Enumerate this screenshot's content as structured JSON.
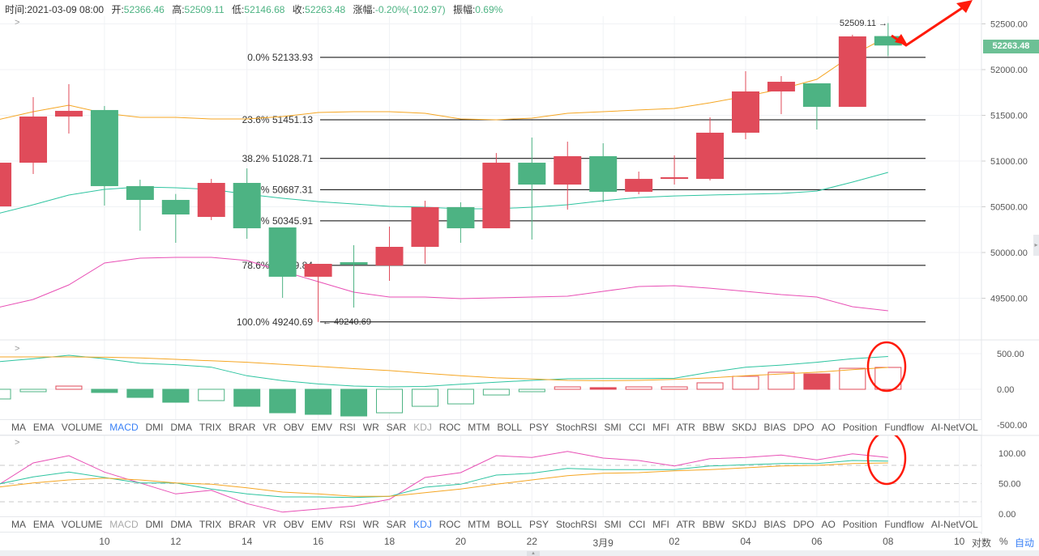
{
  "header": {
    "time_label": "时间:",
    "time": "2021-03-09 08:00",
    "open_label": "开:",
    "open": "52366.46",
    "high_label": "高:",
    "high": "52509.11",
    "low_label": "低:",
    "low": "52146.68",
    "close_label": "收:",
    "close": "52263.48",
    "change_label": "涨幅:",
    "change": "-0.20%(-102.97)",
    "amplitude_label": "振幅:",
    "amplitude": "0.69%"
  },
  "colors": {
    "up": "#e04b5a",
    "down": "#4db383",
    "ma1": "#f5a623",
    "ma2": "#2ec4a0",
    "ma3": "#e84fb5",
    "fib": "#000000",
    "annotation": "#ff1a0a",
    "active_tab": "#3b82f6"
  },
  "price_axis": {
    "ticks": [
      "52500.00",
      "52000.00",
      "51500.00",
      "51000.00",
      "50500.00",
      "50000.00",
      "49500.00"
    ],
    "tick_values": [
      52500,
      52000,
      51500,
      51000,
      50500,
      50000,
      49500
    ],
    "current_price": "52263.48"
  },
  "macd_axis": {
    "ticks": [
      "500.00",
      "0.00",
      "-500.00"
    ],
    "tick_values": [
      500,
      0,
      -500
    ]
  },
  "kdj_axis": {
    "ticks": [
      "100.00",
      "50.00",
      "0.00"
    ],
    "tick_values": [
      100,
      50,
      0
    ],
    "dashed_levels": [
      80,
      50,
      20
    ]
  },
  "x_axis": {
    "labels": [
      "10",
      "12",
      "14",
      "16",
      "18",
      "20",
      "22",
      "3月9",
      "02",
      "04",
      "06",
      "08",
      "10"
    ],
    "label_candle_index": [
      2,
      4,
      6,
      8,
      10,
      12,
      14,
      16,
      18,
      20,
      22,
      24,
      26
    ]
  },
  "axis_controls": {
    "log": "对数",
    "percent": "%",
    "auto": "自动"
  },
  "fibonacci": [
    {
      "label": "0.0% 52133.93",
      "value": 52133.93
    },
    {
      "label": "23.6% 51451.13",
      "value": 51451.13
    },
    {
      "label": "38.2% 51028.71",
      "value": 51028.71
    },
    {
      "label": "50.0% 50687.31",
      "value": 50687.31
    },
    {
      "label": "61.8% 50345.91",
      "value": 50345.91
    },
    {
      "label": "78.6% 49859.84",
      "value": 49859.84
    },
    {
      "label": "100.0% 49240.69",
      "value": 49240.69
    }
  ],
  "markers": {
    "high": "52509.11 →",
    "low": "← 49240.69"
  },
  "candles": [
    {
      "o": 50504,
      "h": 51050,
      "l": 50400,
      "c": 50982
    },
    {
      "o": 50982,
      "h": 51699,
      "l": 50858,
      "c": 51487
    },
    {
      "o": 51487,
      "h": 51841,
      "l": 51301,
      "c": 51549
    },
    {
      "o": 51558,
      "h": 51602,
      "l": 50513,
      "c": 50726
    },
    {
      "o": 50726,
      "h": 50796,
      "l": 50239,
      "c": 50575
    },
    {
      "o": 50575,
      "h": 50640,
      "l": 50106,
      "c": 50416
    },
    {
      "o": 50389,
      "h": 50805,
      "l": 50354,
      "c": 50761
    },
    {
      "o": 50761,
      "h": 50920,
      "l": 50150,
      "c": 50265
    },
    {
      "o": 50274,
      "h": 50274,
      "l": 49504,
      "c": 49735
    },
    {
      "o": 49735,
      "h": 49876,
      "l": 49240.69,
      "c": 49876
    },
    {
      "o": 49894,
      "h": 50080,
      "l": 49398,
      "c": 49867
    },
    {
      "o": 49858,
      "h": 50283,
      "l": 49690,
      "c": 50062
    },
    {
      "o": 50062,
      "h": 50566,
      "l": 49876,
      "c": 50496
    },
    {
      "o": 50496,
      "h": 50549,
      "l": 50106,
      "c": 50265
    },
    {
      "o": 50265,
      "h": 51088,
      "l": 50265,
      "c": 50982
    },
    {
      "o": 50982,
      "h": 51257,
      "l": 50142,
      "c": 50743
    },
    {
      "o": 50743,
      "h": 51212,
      "l": 50469,
      "c": 51053
    },
    {
      "o": 51053,
      "h": 51195,
      "l": 50549,
      "c": 50664
    },
    {
      "o": 50664,
      "h": 50885,
      "l": 50637,
      "c": 50805
    },
    {
      "o": 50805,
      "h": 51062,
      "l": 50743,
      "c": 50823
    },
    {
      "o": 50805,
      "h": 51478,
      "l": 50788,
      "c": 51310
    },
    {
      "o": 51310,
      "h": 51982,
      "l": 51239,
      "c": 51761
    },
    {
      "o": 51761,
      "h": 51929,
      "l": 51513,
      "c": 51867
    },
    {
      "o": 51850,
      "h": 51850,
      "l": 51345,
      "c": 51593
    },
    {
      "o": 51593,
      "h": 52381,
      "l": 51593,
      "c": 52363
    },
    {
      "o": 52366.46,
      "h": 52509.11,
      "l": 52146.68,
      "c": 52263.48
    }
  ],
  "ma_lines": [
    [
      51451,
      51540,
      51611,
      51522,
      51478,
      51478,
      51460,
      51460,
      51487,
      51531,
      51540,
      51540,
      51522,
      51460,
      51451,
      51469,
      51522,
      51540,
      51558,
      51575,
      51637,
      51708,
      51788,
      51894,
      52159,
      52363
    ],
    [
      50425,
      50522,
      50628,
      50690,
      50717,
      50708,
      50690,
      50637,
      50593,
      50557,
      50531,
      50504,
      50496,
      50478,
      50478,
      50496,
      50522,
      50566,
      50602,
      50619,
      50628,
      50637,
      50646,
      50672,
      50770,
      50876
    ],
    [
      49398,
      49487,
      49646,
      49885,
      49938,
      49947,
      49947,
      49912,
      49796,
      49681,
      49566,
      49513,
      49513,
      49496,
      49504,
      49513,
      49522,
      49575,
      49628,
      49637,
      49610,
      49575,
      49540,
      49513,
      49407,
      49363
    ]
  ],
  "macd": {
    "hist": [
      -136,
      -34,
      45,
      -45,
      -114,
      -182,
      -159,
      -239,
      -330,
      -352,
      -375,
      -330,
      -239,
      -205,
      -80,
      -34,
      34,
      23,
      34,
      34,
      91,
      182,
      239,
      216,
      295,
      307
    ],
    "hist_filled": [
      false,
      false,
      false,
      true,
      true,
      true,
      false,
      true,
      true,
      true,
      true,
      false,
      false,
      false,
      false,
      false,
      false,
      true,
      false,
      false,
      false,
      false,
      false,
      true,
      false,
      false
    ],
    "dif": [
      386,
      430,
      477,
      430,
      365,
      345,
      310,
      190,
      120,
      75,
      45,
      34,
      40,
      70,
      100,
      125,
      148,
      150,
      150,
      155,
      240,
      310,
      340,
      380,
      430,
      460
    ],
    "dea": [
      455,
      455,
      455,
      450,
      440,
      420,
      400,
      380,
      350,
      320,
      290,
      262,
      225,
      190,
      160,
      145,
      125,
      120,
      125,
      140,
      160,
      190,
      215,
      240,
      275,
      307
    ]
  },
  "kdj": {
    "k": [
      49,
      61,
      69,
      60,
      51,
      51,
      41,
      33,
      28,
      28,
      27,
      29,
      44,
      49,
      64,
      67,
      75,
      73,
      73,
      73,
      79,
      81,
      83,
      83,
      88,
      87
    ],
    "d": [
      44,
      51,
      56,
      59,
      56,
      51,
      49,
      43,
      36,
      33,
      29,
      29,
      35,
      41,
      49,
      56,
      63,
      67,
      68,
      71,
      73,
      76,
      79,
      80,
      83,
      84
    ],
    "j": [
      47,
      84,
      96,
      69,
      51,
      33,
      39,
      17,
      3,
      8,
      13,
      24,
      60,
      68,
      96,
      93,
      103,
      92,
      88,
      79,
      91,
      93,
      97,
      89,
      99,
      93
    ]
  },
  "indicator_tabs": [
    "MA",
    "EMA",
    "VOLUME",
    "MACD",
    "DMI",
    "DMA",
    "TRIX",
    "BRAR",
    "VR",
    "OBV",
    "EMV",
    "RSI",
    "WR",
    "SAR",
    "KDJ",
    "ROC",
    "MTM",
    "BOLL",
    "PSY",
    "StochRSI",
    "SMI",
    "CCI",
    "MFI",
    "ATR",
    "BBW",
    "SKDJ",
    "BIAS",
    "DPO",
    "AO",
    "Position",
    "Fundflow",
    "AI-NetVOL"
  ],
  "tabs_row1": {
    "active": "MACD",
    "muted": "KDJ"
  },
  "tabs_row2": {
    "active": "KDJ",
    "muted": "MACD"
  }
}
